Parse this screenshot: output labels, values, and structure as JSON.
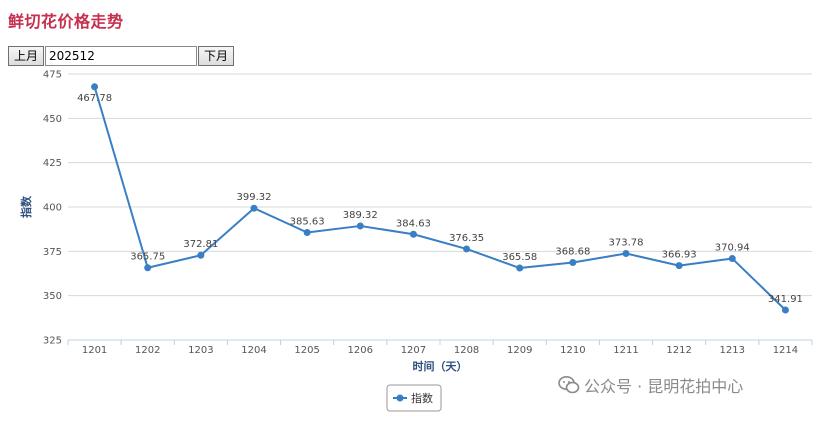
{
  "header": {
    "title": "鲜切花价格走势"
  },
  "nav": {
    "prev_label": "上月",
    "month_value": "202512",
    "next_label": "下月"
  },
  "watermark": {
    "text": "公众号 · 昆明花拍中心",
    "icon": "wechat-icon"
  },
  "chart_data": {
    "type": "line",
    "title": "",
    "xlabel": "时间（天）",
    "ylabel": "指数",
    "categories": [
      "1201",
      "1202",
      "1203",
      "1204",
      "1205",
      "1206",
      "1207",
      "1208",
      "1209",
      "1210",
      "1211",
      "1212",
      "1213",
      "1214"
    ],
    "series": [
      {
        "name": "指数",
        "color": "#3a7fc4",
        "values": [
          467.78,
          365.75,
          372.81,
          399.32,
          385.63,
          389.32,
          384.63,
          376.35,
          365.58,
          368.68,
          373.78,
          366.93,
          370.94,
          341.91
        ],
        "labels": [
          "467.78",
          "365.75",
          "372.81",
          "399.32",
          "385.63",
          "389.32",
          "384.63",
          "376.35",
          "365.58",
          "368.68",
          "373.78",
          "366.93",
          "370.94",
          "341.91"
        ]
      }
    ],
    "yticks": [
      "325",
      "350",
      "375",
      "400",
      "425",
      "450",
      "475"
    ],
    "ylim": [
      325,
      475
    ],
    "grid": true,
    "legend": "bottom-center"
  }
}
